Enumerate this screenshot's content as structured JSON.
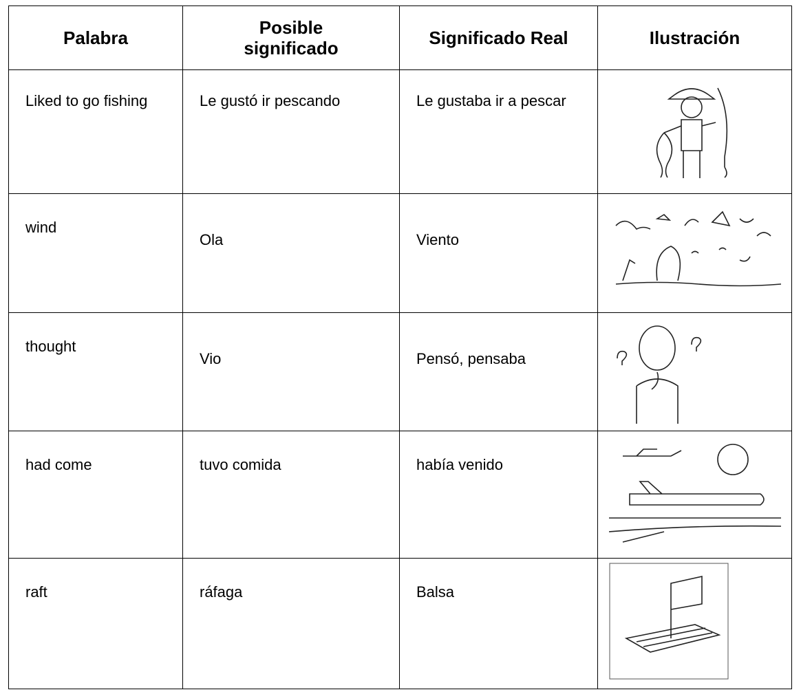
{
  "table": {
    "header": [
      "Palabra",
      "Posible significado",
      "Significado Real",
      "Ilustración"
    ],
    "rows": [
      [
        "Liked to go fishing",
        "Le gustó ir pescando",
        "Le gustaba ir a pescar"
      ],
      [
        "wind",
        "Ola",
        "Viento"
      ],
      [
        "thought",
        "Vio",
        "Pensó, pensaba"
      ],
      [
        "had come",
        "tuvo comida",
        "había venido"
      ],
      [
        "raft",
        "ráfaga",
        "Balsa"
      ]
    ]
  }
}
